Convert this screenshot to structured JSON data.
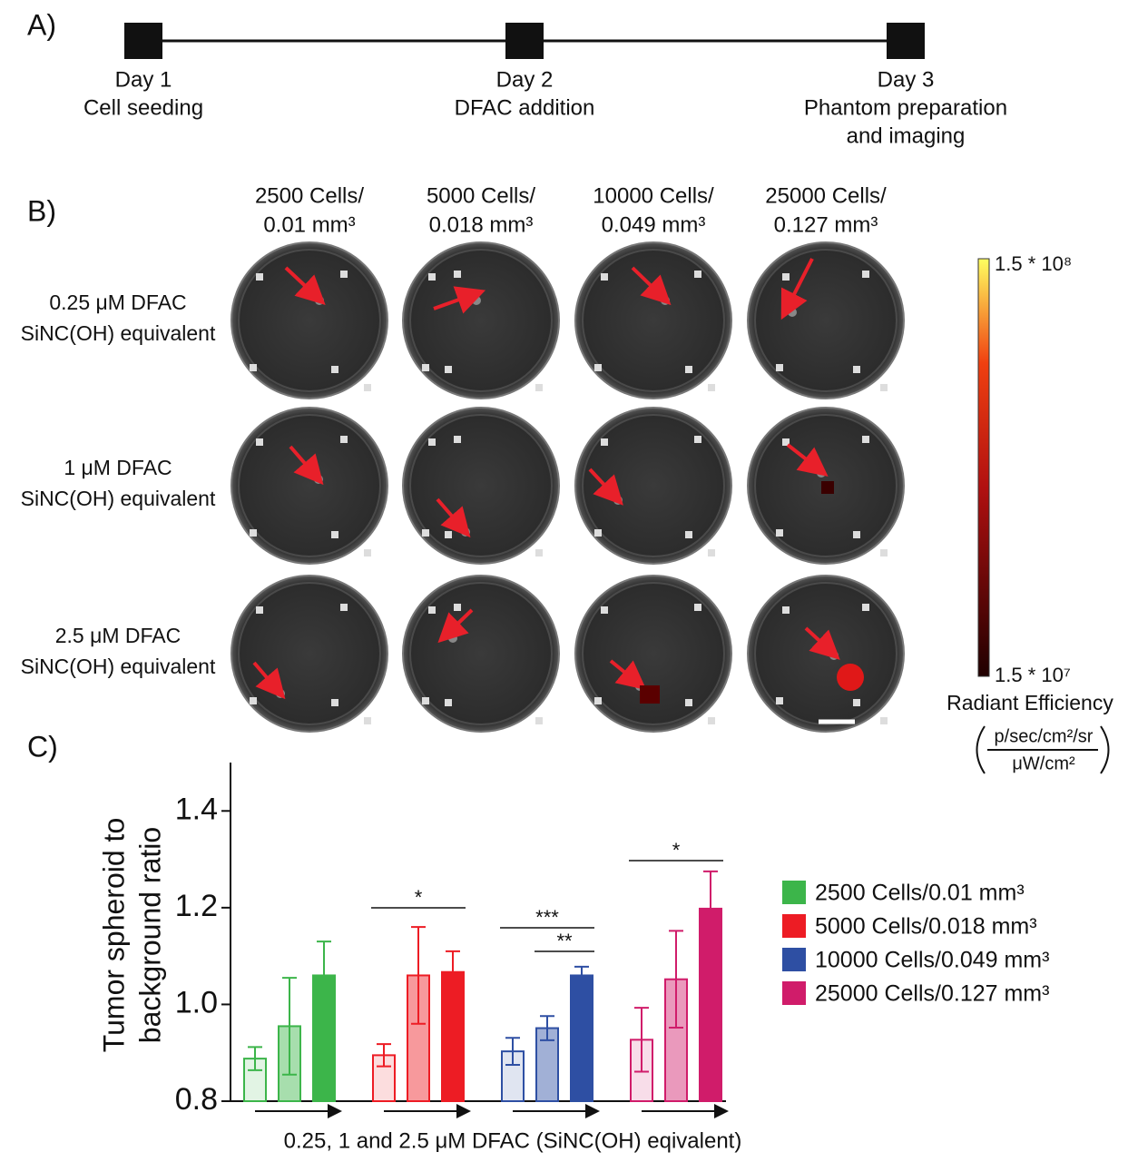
{
  "panel_labels": [
    "A)",
    "B)",
    "C)"
  ],
  "timeline": {
    "steps": [
      {
        "lines": [
          "Day 1",
          "Cell seeding"
        ]
      },
      {
        "lines": [
          "Day 2",
          "DFAC addition"
        ]
      },
      {
        "lines": [
          "Day 3",
          "Phantom preparation",
          "and imaging"
        ]
      }
    ]
  },
  "image_grid": {
    "columns": [
      [
        "2500 Cells/",
        "0.01 mm³"
      ],
      [
        "5000 Cells/",
        "0.018 mm³"
      ],
      [
        "10000 Cells/",
        "0.049 mm³"
      ],
      [
        "25000 Cells/",
        "0.127 mm³"
      ]
    ],
    "rows": [
      [
        "0.25 μM DFAC",
        "SiNC(OH) equivalent"
      ],
      [
        "1 μM DFAC",
        "SiNC(OH) equivalent"
      ],
      [
        "2.5 μM DFAC",
        "SiNC(OH) equivalent"
      ]
    ],
    "colorbar": {
      "max_label": "1.5 * 10⁸",
      "min_label": "1.5 * 10⁷",
      "title": "Radiant Efficiency",
      "unit_numerator": "p/sec/cm²/sr",
      "unit_denominator": "μW/cm²"
    }
  },
  "chart_data": {
    "type": "bar",
    "ylabel": [
      "Tumor spheroid to",
      "background ratio"
    ],
    "xlabel": "0.25, 1 and 2.5 μM DFAC (SiNC(OH) eqivalent)",
    "categories": [
      null,
      null,
      null
    ],
    "series": [
      {
        "name": "2500 Cells/0.01 mm³",
        "color": "#3cb54a",
        "values": [
          0.888,
          0.955,
          1.06
        ],
        "errors": [
          0.024,
          0.1,
          0.07
        ]
      },
      {
        "name": "5000 Cells/0.018 mm³",
        "color": "#ed1c24",
        "values": [
          0.895,
          1.06,
          1.067
        ],
        "errors": [
          0.023,
          0.1,
          0.043
        ]
      },
      {
        "name": "10000 Cells/0.049 mm³",
        "color": "#2e4fa3",
        "values": [
          0.903,
          0.951,
          1.06
        ],
        "errors": [
          0.028,
          0.025,
          0.018
        ]
      },
      {
        "name": "25000 Cells/0.127 mm³",
        "color": "#d01c6a",
        "values": [
          0.927,
          1.052,
          1.198
        ],
        "errors": [
          0.066,
          0.1,
          0.077
        ]
      }
    ],
    "annotations": [
      "*",
      "***",
      "**",
      "*"
    ],
    "ylim": [
      0.8,
      1.5
    ],
    "yticks": [
      0.8,
      {
        "value": 1,
        "label": "1.0"
      },
      1.2,
      1.4
    ]
  }
}
